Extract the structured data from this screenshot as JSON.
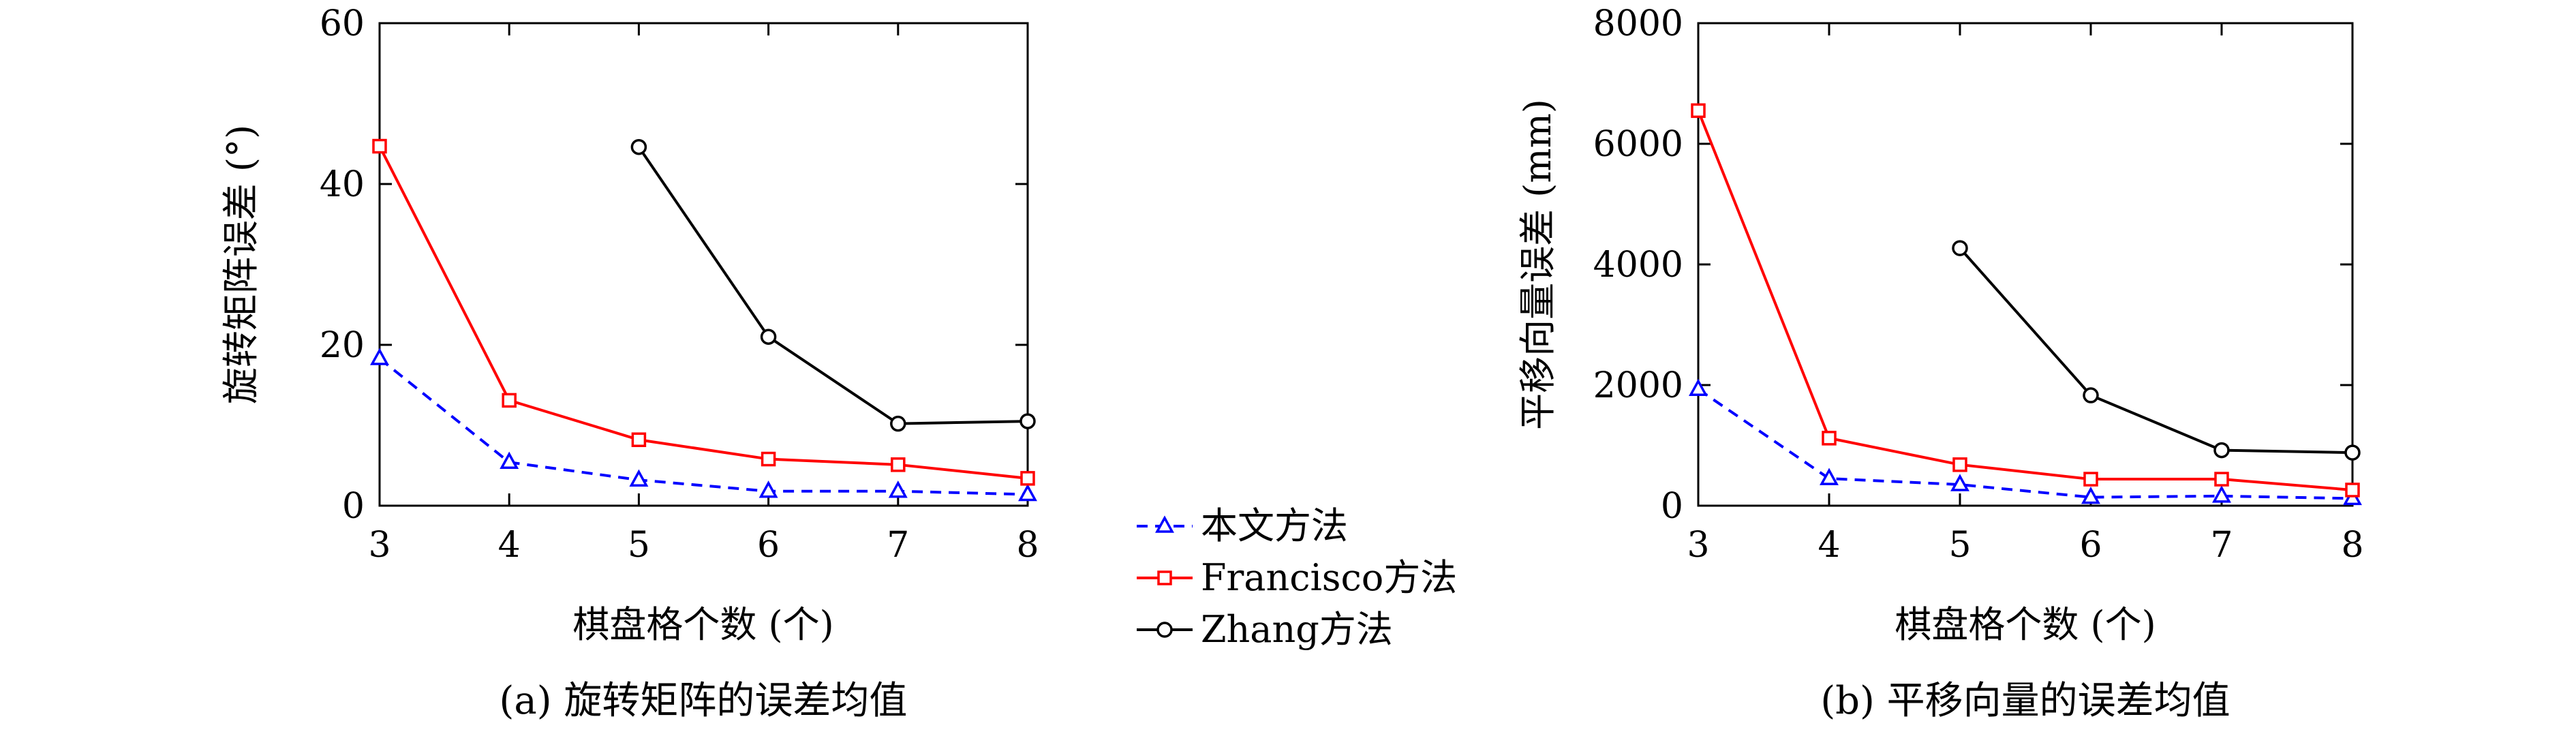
{
  "chart_data": [
    {
      "type": "line",
      "panel_caption": "(a) 旋转矩阵的误差均值",
      "xlabel": "棋盘格个数 (个)",
      "ylabel": "旋转矩阵误差 (°)",
      "xlim": [
        3,
        8
      ],
      "ylim": [
        0,
        60
      ],
      "xticks": [
        3,
        4,
        5,
        6,
        7,
        8
      ],
      "yticks": [
        0,
        20,
        40,
        60
      ],
      "grid": false,
      "series": [
        {
          "name": "本文方法",
          "color": "#0000ff",
          "dash": true,
          "marker": "triangle",
          "x": [
            3,
            4,
            5,
            6,
            7,
            8
          ],
          "y": [
            18.3,
            5.4,
            3.2,
            1.8,
            1.8,
            1.4
          ]
        },
        {
          "name": "Francisco方法",
          "color": "#ff0000",
          "dash": false,
          "marker": "square",
          "x": [
            3,
            4,
            5,
            6,
            7,
            8
          ],
          "y": [
            44.7,
            13.1,
            8.2,
            5.8,
            5.1,
            3.4
          ]
        },
        {
          "name": "Zhang方法",
          "color": "#000000",
          "dash": false,
          "marker": "circle",
          "x": [
            5,
            6,
            7,
            8
          ],
          "y": [
            44.6,
            21.0,
            10.2,
            10.5
          ]
        }
      ]
    },
    {
      "type": "line",
      "panel_caption": "(b) 平移向量的误差均值",
      "xlabel": "棋盘格个数 (个)",
      "ylabel": "平移向量误差 (mm)",
      "xlim": [
        3,
        8
      ],
      "ylim": [
        0,
        8000
      ],
      "xticks": [
        3,
        4,
        5,
        6,
        7,
        8
      ],
      "yticks": [
        0,
        2000,
        4000,
        6000,
        8000
      ],
      "grid": false,
      "series": [
        {
          "name": "本文方法",
          "color": "#0000ff",
          "dash": true,
          "marker": "triangle",
          "x": [
            3,
            4,
            5,
            6,
            7,
            8
          ],
          "y": [
            1930,
            450,
            350,
            140,
            160,
            120
          ]
        },
        {
          "name": "Francisco方法",
          "color": "#ff0000",
          "dash": false,
          "marker": "square",
          "x": [
            3,
            4,
            5,
            6,
            7,
            8
          ],
          "y": [
            6550,
            1120,
            680,
            440,
            440,
            260
          ]
        },
        {
          "name": "Zhang方法",
          "color": "#000000",
          "dash": false,
          "marker": "circle",
          "x": [
            5,
            6,
            7,
            8
          ],
          "y": [
            4270,
            1830,
            920,
            880
          ]
        }
      ]
    }
  ],
  "legend": {
    "placement": "between panels, bottom",
    "entries": [
      "本文方法",
      "Francisco方法",
      "Zhang方法"
    ]
  }
}
